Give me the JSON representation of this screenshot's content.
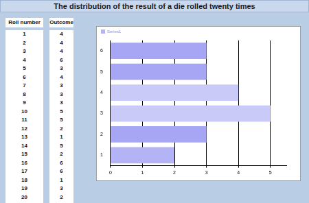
{
  "header": {
    "title": "The distribution of the result of a die rolled twenty times"
  },
  "table": {
    "columns": [
      "Roll number",
      "Outcome"
    ],
    "rows": [
      [
        1,
        4
      ],
      [
        2,
        4
      ],
      [
        3,
        4
      ],
      [
        4,
        6
      ],
      [
        5,
        3
      ],
      [
        6,
        4
      ],
      [
        7,
        3
      ],
      [
        8,
        3
      ],
      [
        9,
        3
      ],
      [
        10,
        5
      ],
      [
        11,
        5
      ],
      [
        12,
        2
      ],
      [
        13,
        1
      ],
      [
        14,
        5
      ],
      [
        15,
        2
      ],
      [
        16,
        6
      ],
      [
        17,
        6
      ],
      [
        18,
        1
      ],
      [
        19,
        3
      ],
      [
        20,
        2
      ]
    ]
  },
  "chart_data": {
    "type": "bar",
    "orientation": "horizontal",
    "categories": [
      "1",
      "2",
      "3",
      "4",
      "5",
      "6"
    ],
    "series": [
      {
        "name": "Series1",
        "values": [
          2,
          3,
          5,
          4,
          3,
          3
        ]
      }
    ],
    "colors": [
      "#b3b3f5",
      "#a6a6f5",
      "#cacaf8",
      "#cacaf8",
      "#a6a6f5",
      "#a6a6f5"
    ],
    "xlim": [
      0,
      5.5
    ],
    "xticks": [
      0,
      1,
      2,
      3,
      4,
      5
    ],
    "grid": true,
    "legend": "top-left"
  }
}
